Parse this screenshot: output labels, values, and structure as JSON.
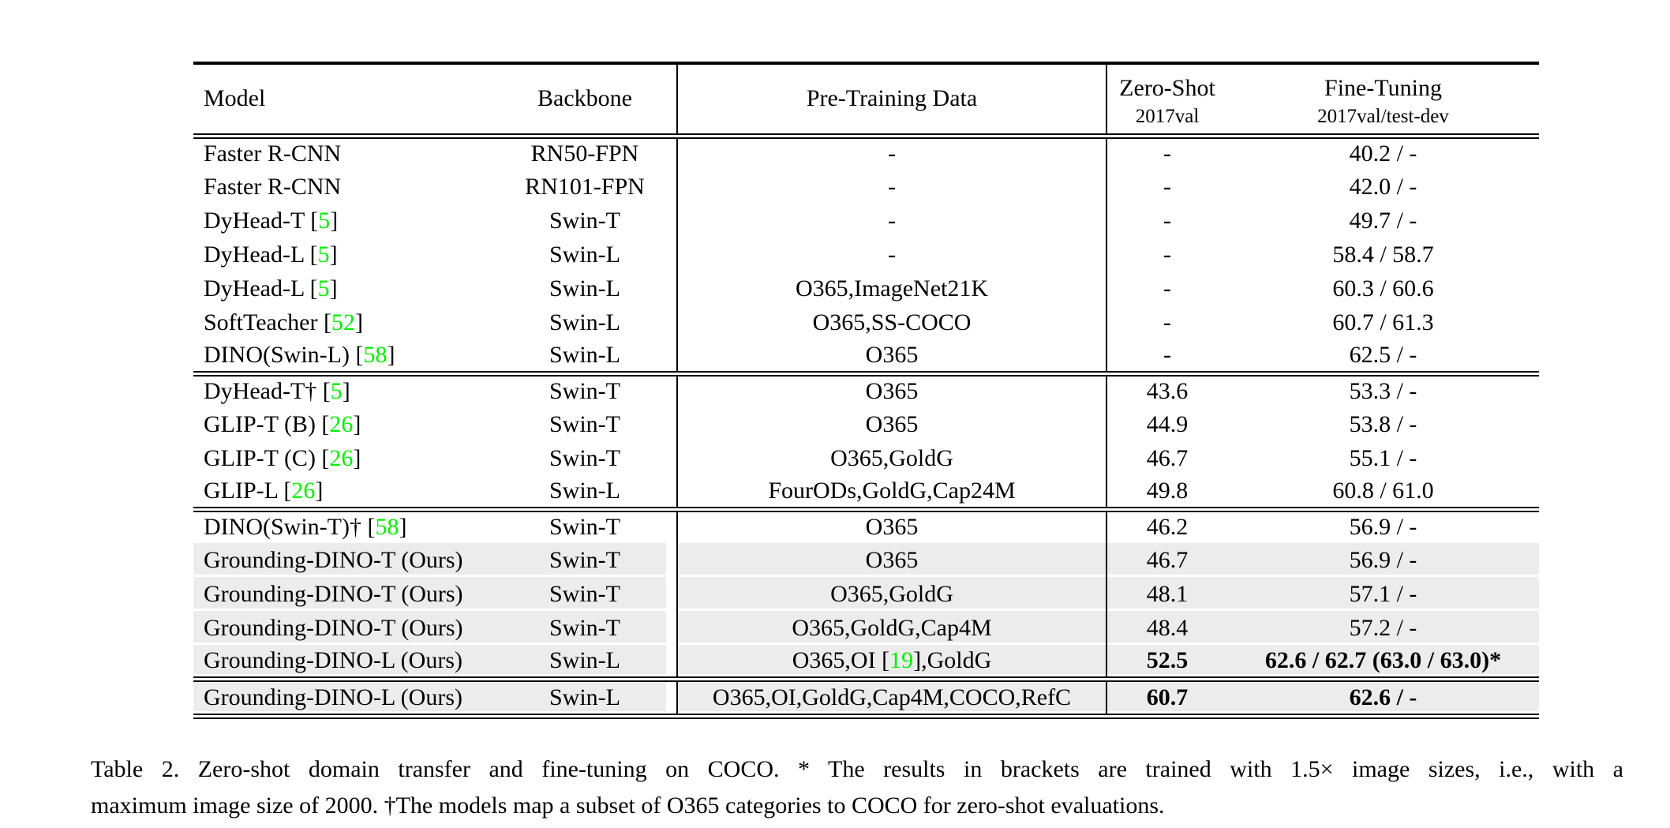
{
  "colors": {
    "citation_green": "#00ee00",
    "row_highlight": "#ececec",
    "text": "#000000",
    "rule": "#000000"
  },
  "table": {
    "columns": [
      {
        "key": "model",
        "label": "Model"
      },
      {
        "key": "backbone",
        "label": "Backbone"
      },
      {
        "key": "pretrain",
        "label": "Pre-Training Data"
      },
      {
        "key": "zero_shot",
        "label": "Zero-Shot",
        "sublabel": "2017val"
      },
      {
        "key": "fine_tuning",
        "label": "Fine-Tuning",
        "sublabel": "2017val/test-dev"
      }
    ],
    "sections": [
      {
        "rows": [
          {
            "model": "Faster R-CNN",
            "backbone": "RN50-FPN",
            "pretrain": "-",
            "zero_shot": "-",
            "fine_tuning": "40.2 / -",
            "highlight": false,
            "bold": false
          },
          {
            "model": "Faster R-CNN",
            "backbone": "RN101-FPN",
            "pretrain": "-",
            "zero_shot": "-",
            "fine_tuning": "42.0 / -",
            "highlight": false,
            "bold": false
          },
          {
            "model": "DyHead-T [5]",
            "backbone": "Swin-T",
            "pretrain": "-",
            "zero_shot": "-",
            "fine_tuning": "49.7 / -",
            "highlight": false,
            "bold": false
          },
          {
            "model": "DyHead-L [5]",
            "backbone": "Swin-L",
            "pretrain": "-",
            "zero_shot": "-",
            "fine_tuning": "58.4 / 58.7",
            "highlight": false,
            "bold": false
          },
          {
            "model": "DyHead-L [5]",
            "backbone": "Swin-L",
            "pretrain": "O365,ImageNet21K",
            "zero_shot": "-",
            "fine_tuning": "60.3 / 60.6",
            "highlight": false,
            "bold": false
          },
          {
            "model": "SoftTeacher [52]",
            "backbone": "Swin-L",
            "pretrain": "O365,SS-COCO",
            "zero_shot": "-",
            "fine_tuning": "60.7 / 61.3",
            "highlight": false,
            "bold": false
          },
          {
            "model": "DINO(Swin-L) [58]",
            "backbone": "Swin-L",
            "pretrain": "O365",
            "zero_shot": "-",
            "fine_tuning": "62.5 / -",
            "highlight": false,
            "bold": false
          }
        ]
      },
      {
        "rows": [
          {
            "model": "DyHead-T† [5]",
            "backbone": "Swin-T",
            "pretrain": "O365",
            "zero_shot": "43.6",
            "fine_tuning": "53.3 / -",
            "highlight": false,
            "bold": false
          },
          {
            "model": "GLIP-T (B) [26]",
            "backbone": "Swin-T",
            "pretrain": "O365",
            "zero_shot": "44.9",
            "fine_tuning": "53.8 / -",
            "highlight": false,
            "bold": false
          },
          {
            "model": "GLIP-T (C) [26]",
            "backbone": "Swin-T",
            "pretrain": "O365,GoldG",
            "zero_shot": "46.7",
            "fine_tuning": "55.1 / -",
            "highlight": false,
            "bold": false
          },
          {
            "model": "GLIP-L [26]",
            "backbone": "Swin-L",
            "pretrain": "FourODs,GoldG,Cap24M",
            "zero_shot": "49.8",
            "fine_tuning": "60.8 / 61.0",
            "highlight": false,
            "bold": false
          }
        ]
      },
      {
        "rows": [
          {
            "model": "DINO(Swin-T)† [58]",
            "backbone": "Swin-T",
            "pretrain": "O365",
            "zero_shot": "46.2",
            "fine_tuning": "56.9 / -",
            "highlight": false,
            "bold": false
          },
          {
            "model": "Grounding-DINO-T (Ours)",
            "backbone": "Swin-T",
            "pretrain": "O365",
            "zero_shot": "46.7",
            "fine_tuning": "56.9 / -",
            "highlight": true,
            "bold": false
          },
          {
            "model": "Grounding-DINO-T (Ours)",
            "backbone": "Swin-T",
            "pretrain": "O365,GoldG",
            "zero_shot": "48.1",
            "fine_tuning": "57.1 / -",
            "highlight": true,
            "bold": false
          },
          {
            "model": "Grounding-DINO-T (Ours)",
            "backbone": "Swin-T",
            "pretrain": "O365,GoldG,Cap4M",
            "zero_shot": "48.4",
            "fine_tuning": "57.2 / -",
            "highlight": true,
            "bold": false
          },
          {
            "model": "Grounding-DINO-L (Ours)",
            "backbone": "Swin-L",
            "pretrain": "O365,OI [19],GoldG",
            "zero_shot": "52.5",
            "fine_tuning": "62.6 / 62.7 (63.0 / 63.0)*",
            "highlight": true,
            "bold": true
          }
        ]
      },
      {
        "rows": [
          {
            "model": "Grounding-DINO-L (Ours)",
            "backbone": "Swin-L",
            "pretrain": "O365,OI,GoldG,Cap4M,COCO,RefC",
            "zero_shot": "60.7",
            "fine_tuning": "62.6 / -",
            "highlight": true,
            "bold": true
          }
        ]
      }
    ]
  },
  "caption": {
    "line1": "Table 2.  Zero-shot domain transfer and fine-tuning on COCO. * The results in brackets are trained with 1.5× image sizes, i.e., with a",
    "line2": "maximum image size of 2000. †The models map a subset of O365 categories to COCO for zero-shot evaluations."
  }
}
